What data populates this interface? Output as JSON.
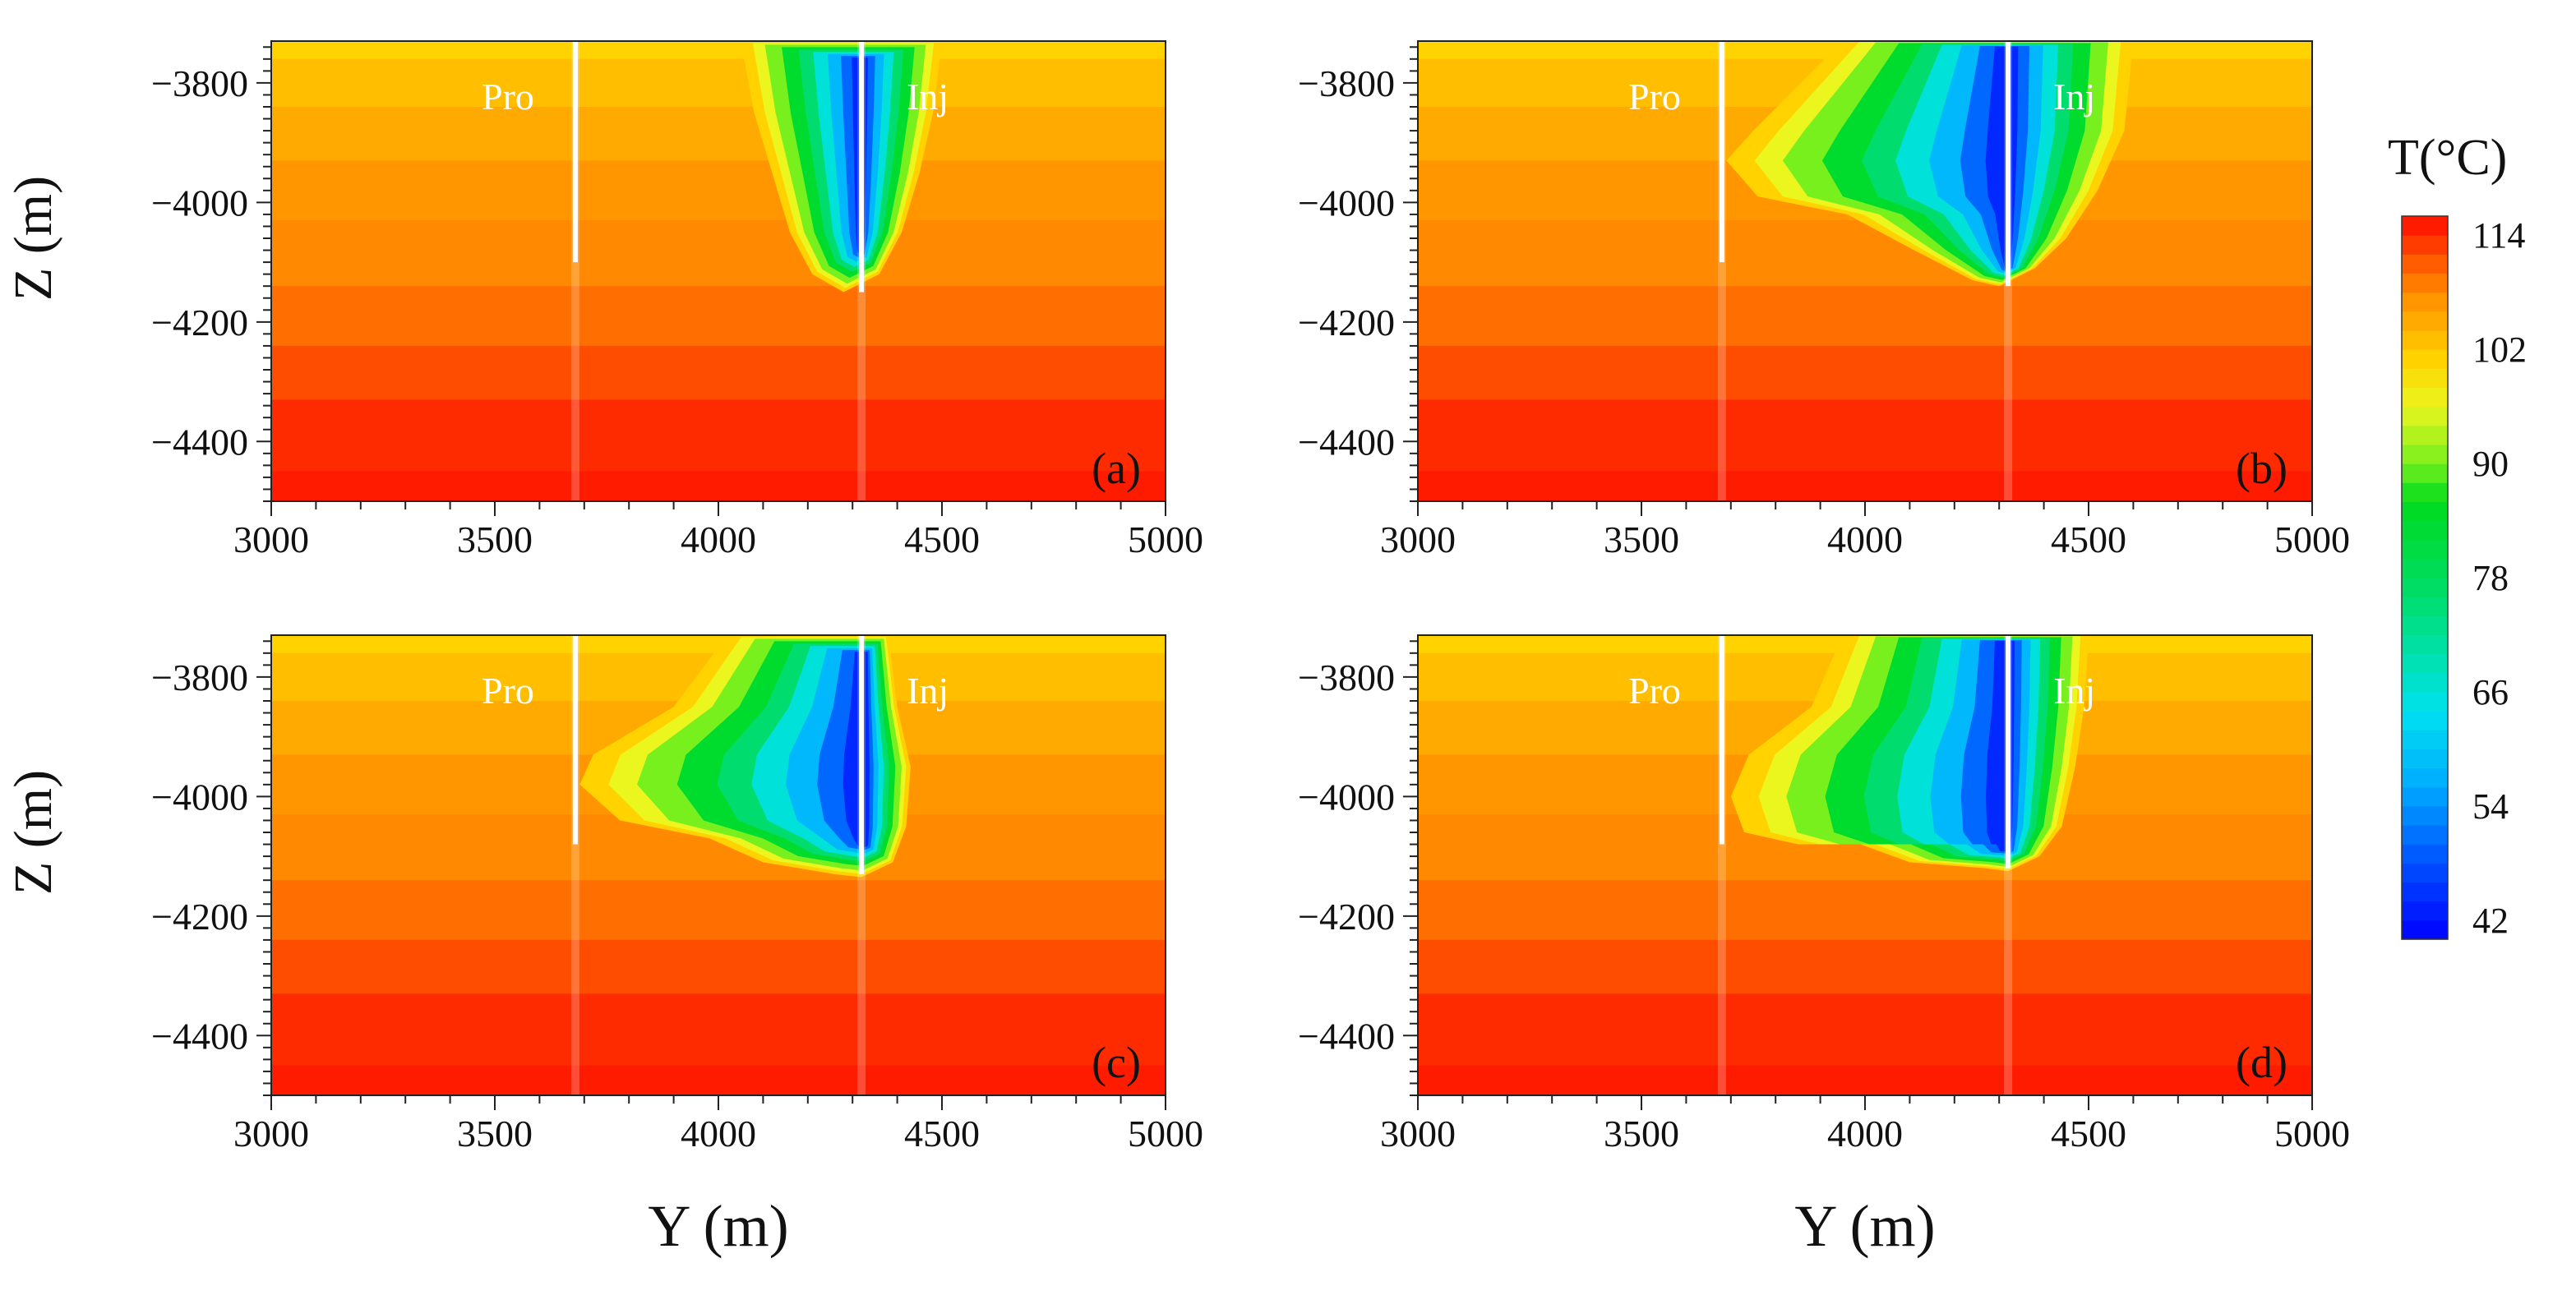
{
  "chart_data": [
    {
      "type": "heatmap",
      "panel_label": "(a)",
      "xlabel": "",
      "ylabel": "Z (m)",
      "xlim": [
        3000,
        5000
      ],
      "ylim": [
        -4500,
        -3730
      ],
      "x_ticks": [
        3000,
        3500,
        4000,
        4500,
        5000
      ],
      "y_ticks": [
        -3800,
        -4000,
        -4200,
        -4400
      ],
      "wells": [
        {
          "label": "Pro",
          "y_position": 3680,
          "bottom_depth": -4100
        },
        {
          "label": "Inj",
          "y_position": 4320,
          "bottom_depth": -4150
        }
      ],
      "cold_plume": {
        "left_boundary": [
          [
            4050,
            -3730
          ],
          [
            4080,
            -3850
          ],
          [
            4120,
            -3950
          ],
          [
            4160,
            -4050
          ],
          [
            4210,
            -4120
          ],
          [
            4280,
            -4150
          ]
        ],
        "right_boundary": [
          [
            4280,
            -4150
          ],
          [
            4360,
            -4120
          ],
          [
            4410,
            -4050
          ],
          [
            4450,
            -3950
          ],
          [
            4480,
            -3850
          ],
          [
            4500,
            -3730
          ]
        ],
        "min_temperature": 42,
        "core_y": 4320,
        "core_depth_range": [
          -3760,
          -4080
        ]
      }
    },
    {
      "type": "heatmap",
      "panel_label": "(b)",
      "xlabel": "",
      "ylabel": "",
      "xlim": [
        3000,
        5000
      ],
      "ylim": [
        -4500,
        -3730
      ],
      "x_ticks": [
        3000,
        3500,
        4000,
        4500,
        5000
      ],
      "y_ticks": [
        -3800,
        -4000,
        -4200,
        -4400
      ],
      "wells": [
        {
          "label": "Pro",
          "y_position": 3680,
          "bottom_depth": -4100
        },
        {
          "label": "Inj",
          "y_position": 4320,
          "bottom_depth": -4140
        }
      ],
      "cold_plume": {
        "left_boundary": [
          [
            3950,
            -3730
          ],
          [
            3750,
            -3880
          ],
          [
            3690,
            -3930
          ],
          [
            3760,
            -3990
          ],
          [
            3960,
            -4020
          ],
          [
            4110,
            -4080
          ],
          [
            4240,
            -4130
          ],
          [
            4300,
            -4140
          ]
        ],
        "right_boundary": [
          [
            4300,
            -4140
          ],
          [
            4380,
            -4110
          ],
          [
            4450,
            -4060
          ],
          [
            4520,
            -3980
          ],
          [
            4580,
            -3880
          ],
          [
            4600,
            -3730
          ]
        ],
        "min_temperature": 42,
        "core_y": 4320,
        "core_depth_range": [
          -3740,
          -4110
        ]
      }
    },
    {
      "type": "heatmap",
      "panel_label": "(c)",
      "xlabel": "Y (m)",
      "ylabel": "Z (m)",
      "xlim": [
        3000,
        5000
      ],
      "ylim": [
        -4500,
        -3730
      ],
      "x_ticks": [
        3000,
        3500,
        4000,
        4500,
        5000
      ],
      "y_ticks": [
        -3800,
        -4000,
        -4200,
        -4400
      ],
      "wells": [
        {
          "label": "Pro",
          "y_position": 3680,
          "bottom_depth": -4080
        },
        {
          "label": "Inj",
          "y_position": 4320,
          "bottom_depth": -4130
        }
      ],
      "cold_plume": {
        "left_boundary": [
          [
            4020,
            -3730
          ],
          [
            3900,
            -3850
          ],
          [
            3720,
            -3930
          ],
          [
            3690,
            -3980
          ],
          [
            3780,
            -4040
          ],
          [
            3980,
            -4070
          ],
          [
            4100,
            -4110
          ],
          [
            4260,
            -4130
          ],
          [
            4320,
            -4135
          ]
        ],
        "right_boundary": [
          [
            4320,
            -4135
          ],
          [
            4390,
            -4110
          ],
          [
            4420,
            -4050
          ],
          [
            4430,
            -3950
          ],
          [
            4400,
            -3850
          ],
          [
            4380,
            -3730
          ]
        ],
        "min_temperature": 42,
        "core_y": 4330,
        "core_depth_range": [
          -3760,
          -4080
        ]
      }
    },
    {
      "type": "heatmap",
      "panel_label": "(d)",
      "xlabel": "Y (m)",
      "ylabel": "",
      "xlim": [
        3000,
        5000
      ],
      "ylim": [
        -4500,
        -3730
      ],
      "x_ticks": [
        3000,
        3500,
        4000,
        4500,
        5000
      ],
      "y_ticks": [
        -3800,
        -4000,
        -4200,
        -4400
      ],
      "wells": [
        {
          "label": "Pro",
          "y_position": 3680,
          "bottom_depth": -4080
        },
        {
          "label": "Inj",
          "y_position": 4320,
          "bottom_depth": -4120
        }
      ],
      "cold_plume": {
        "left_boundary": [
          [
            3950,
            -3730
          ],
          [
            3880,
            -3850
          ],
          [
            3740,
            -3930
          ],
          [
            3700,
            -4000
          ],
          [
            3730,
            -4060
          ],
          [
            3850,
            -4080
          ],
          [
            3990,
            -4080
          ],
          [
            4100,
            -4110
          ],
          [
            4270,
            -4120
          ],
          [
            4320,
            -4125
          ]
        ],
        "right_boundary": [
          [
            4320,
            -4125
          ],
          [
            4390,
            -4100
          ],
          [
            4440,
            -4050
          ],
          [
            4470,
            -3950
          ],
          [
            4490,
            -3850
          ],
          [
            4500,
            -3730
          ]
        ],
        "min_temperature": 42,
        "core_y": 4320,
        "core_depth_range": [
          -3740,
          -4090
        ]
      }
    }
  ],
  "colorbar": {
    "title": "T(°C)",
    "min": 40,
    "max": 116,
    "ticks": [
      114,
      102,
      90,
      78,
      66,
      54,
      42
    ]
  },
  "layer_temperatures": [
    {
      "top": -3730,
      "bottom": -3760,
      "temp": 101
    },
    {
      "top": -3760,
      "bottom": -3840,
      "temp": 103
    },
    {
      "top": -3840,
      "bottom": -3930,
      "temp": 105
    },
    {
      "top": -3930,
      "bottom": -4030,
      "temp": 107
    },
    {
      "top": -4030,
      "bottom": -4140,
      "temp": 108
    },
    {
      "top": -4140,
      "bottom": -4240,
      "temp": 110
    },
    {
      "top": -4240,
      "bottom": -4330,
      "temp": 112
    },
    {
      "top": -4330,
      "bottom": -4450,
      "temp": 114
    },
    {
      "top": -4450,
      "bottom": -4500,
      "temp": 115
    }
  ]
}
